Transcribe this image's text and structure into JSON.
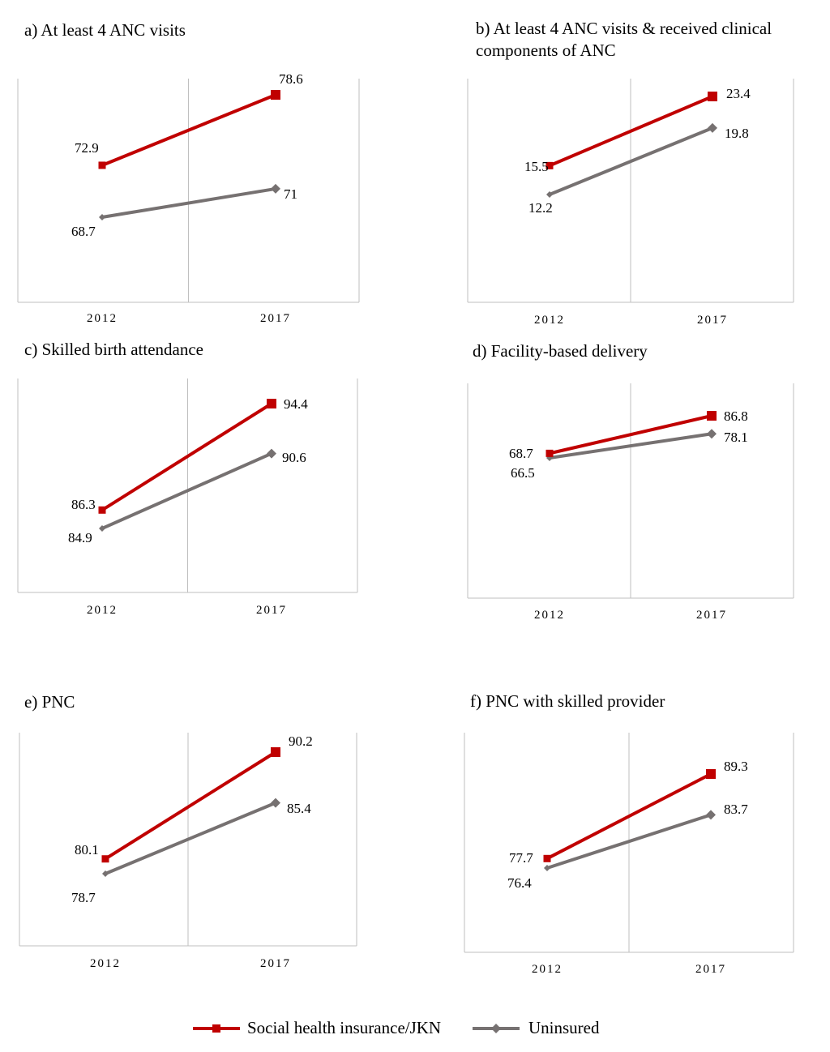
{
  "legend": {
    "insured": "Social health insurance/JKN",
    "uninsured": "Uninsured"
  },
  "colors": {
    "insured": "#c00000",
    "uninsured": "#767171",
    "axis": "#bfbfbf"
  },
  "chart_data": [
    {
      "type": "line",
      "title": "a) At least 4 ANC visits",
      "categories": [
        "2012",
        "2017"
      ],
      "series": [
        {
          "name": "Social health insurance/JKN",
          "values": [
            72.9,
            78.6
          ]
        },
        {
          "name": "Uninsured",
          "values": [
            68.7,
            71
          ]
        }
      ]
    },
    {
      "type": "line",
      "title": "b) At least 4 ANC visits & received clinical components of ANC",
      "categories": [
        "2012",
        "2017"
      ],
      "series": [
        {
          "name": "Social health insurance/JKN",
          "values": [
            15.5,
            23.4
          ]
        },
        {
          "name": "Uninsured",
          "values": [
            12.2,
            19.8
          ]
        }
      ]
    },
    {
      "type": "line",
      "title": "c) Skilled birth attendance",
      "categories": [
        "2012",
        "2017"
      ],
      "series": [
        {
          "name": "Social health insurance/JKN",
          "values": [
            86.3,
            94.4
          ]
        },
        {
          "name": "Uninsured",
          "values": [
            84.9,
            90.6
          ]
        }
      ]
    },
    {
      "type": "line",
      "title": "d) Facility-based delivery",
      "categories": [
        "2012",
        "2017"
      ],
      "series": [
        {
          "name": "Social health insurance/JKN",
          "values": [
            68.7,
            86.8
          ]
        },
        {
          "name": "Uninsured",
          "values": [
            66.5,
            78.1
          ]
        }
      ]
    },
    {
      "type": "line",
      "title": "e) PNC",
      "categories": [
        "2012",
        "2017"
      ],
      "series": [
        {
          "name": "Social health insurance/JKN",
          "values": [
            80.1,
            90.2
          ]
        },
        {
          "name": "Uninsured",
          "values": [
            78.7,
            85.4
          ]
        }
      ]
    },
    {
      "type": "line",
      "title": "f) PNC with skilled provider",
      "categories": [
        "2012",
        "2017"
      ],
      "series": [
        {
          "name": "Social health insurance/JKN",
          "values": [
            77.7,
            89.3
          ]
        },
        {
          "name": "Uninsured",
          "values": [
            76.4,
            83.7
          ]
        }
      ]
    }
  ]
}
